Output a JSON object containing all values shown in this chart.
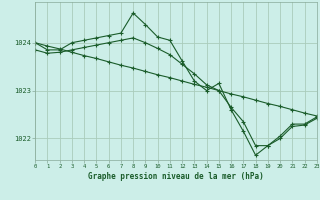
{
  "title": "Graphe pression niveau de la mer (hPa)",
  "background_color": "#cceee8",
  "grid_color": "#aaccbb",
  "line_color": "#1a5c2a",
  "xlim": [
    0,
    23
  ],
  "ylim": [
    1021.55,
    1024.85
  ],
  "yticks": [
    1022,
    1023,
    1024
  ],
  "xticks": [
    0,
    1,
    2,
    3,
    4,
    5,
    6,
    7,
    8,
    9,
    10,
    11,
    12,
    13,
    14,
    15,
    16,
    17,
    18,
    19,
    20,
    21,
    22,
    23
  ],
  "series": [
    {
      "x": [
        0,
        1,
        2,
        3,
        4,
        5,
        6,
        7,
        8,
        9,
        10,
        11,
        12,
        13,
        14,
        15,
        16,
        17,
        18,
        19,
        20,
        21,
        22,
        23
      ],
      "y": [
        1024.0,
        1023.85,
        1023.85,
        1024.0,
        1024.05,
        1024.1,
        1024.15,
        1024.2,
        1024.62,
        1024.38,
        1024.12,
        1024.05,
        1023.62,
        1023.2,
        1023.0,
        1023.15,
        1022.6,
        1022.15,
        1021.65,
        1021.85,
        1022.05,
        1022.3,
        1022.3,
        1022.45
      ]
    },
    {
      "x": [
        0,
        1,
        2,
        3,
        4,
        5,
        6,
        7,
        8,
        9,
        10,
        11,
        12,
        13,
        14,
        15,
        16,
        17,
        18,
        19,
        20,
        21,
        22,
        23
      ],
      "y": [
        1024.0,
        1023.93,
        1023.87,
        1023.8,
        1023.73,
        1023.67,
        1023.6,
        1023.53,
        1023.47,
        1023.4,
        1023.33,
        1023.27,
        1023.2,
        1023.13,
        1023.07,
        1023.0,
        1022.93,
        1022.87,
        1022.8,
        1022.73,
        1022.67,
        1022.6,
        1022.53,
        1022.47
      ]
    },
    {
      "x": [
        0,
        1,
        2,
        3,
        4,
        5,
        6,
        7,
        8,
        9,
        10,
        11,
        12,
        13,
        14,
        15,
        16,
        17,
        18,
        19,
        20,
        21,
        22,
        23
      ],
      "y": [
        1023.85,
        1023.78,
        1023.8,
        1023.85,
        1023.9,
        1023.95,
        1024.0,
        1024.05,
        1024.1,
        1024.0,
        1023.88,
        1023.75,
        1023.55,
        1023.35,
        1023.12,
        1023.0,
        1022.65,
        1022.35,
        1021.85,
        1021.85,
        1022.0,
        1022.25,
        1022.28,
        1022.42
      ]
    }
  ]
}
